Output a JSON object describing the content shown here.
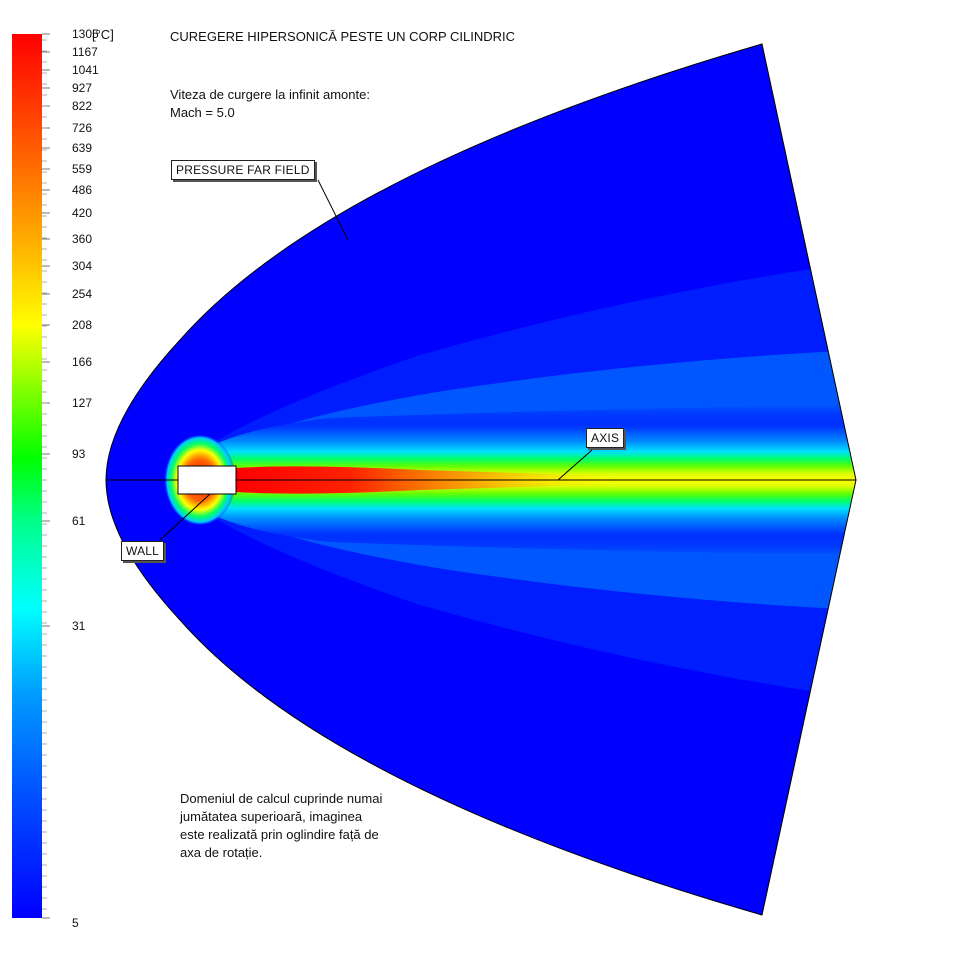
{
  "colorbar": {
    "unit": "[°C]",
    "tick_labels": [
      "1305",
      "1167",
      "1041",
      "927",
      "822",
      "726",
      "639",
      "559",
      "486",
      "420",
      "360",
      "304",
      "254",
      "208",
      "166",
      "127",
      "93",
      "61",
      "31",
      "5"
    ],
    "colors": [
      "#0000ff",
      "#0066ff",
      "#00ccff",
      "#00ffff",
      "#00ff99",
      "#00ff00",
      "#66ff00",
      "#ffff00",
      "#ffcc00",
      "#ff8800",
      "#ff3300",
      "#ff0000"
    ]
  },
  "title": "CUREGERE HIPERSONICĂ PESTE UN CORP CILINDRIC",
  "freestream_note": "Viteza de curgere la infinit amonte:\nMach = 5.0",
  "labels": {
    "far_field": "PRESSURE FAR FIELD",
    "axis": "AXIS",
    "wall": "WALL"
  },
  "domain_note": "Domeniul de calcul cuprinde numai\njumătatea superioară, imaginea\neste realizată prin oglindire față de\naxa de rotație.",
  "colors": {
    "background_field": "#0000ff",
    "outline": "#000000"
  }
}
